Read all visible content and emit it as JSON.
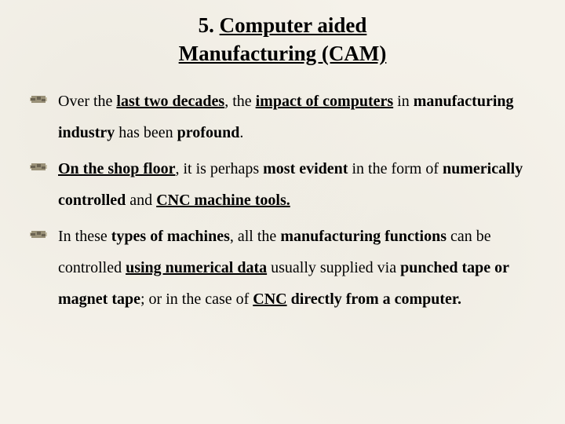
{
  "title": {
    "prefix": "5. ",
    "line1": "Computer aided",
    "line2": "Manufacturing (CAM)"
  },
  "bullets": [
    {
      "html_parts": [
        {
          "t": "Over the ",
          "b": false,
          "u": false
        },
        {
          "t": "last two decades",
          "b": true,
          "u": true
        },
        {
          "t": ", the ",
          "b": false,
          "u": false
        },
        {
          "t": "impact of computers",
          "b": true,
          "u": true
        },
        {
          "t": " in ",
          "b": false,
          "u": false
        },
        {
          "t": "manufacturing industry",
          "b": true,
          "u": false
        },
        {
          "t": " has been ",
          "b": false,
          "u": false
        },
        {
          "t": "profound",
          "b": true,
          "u": false
        },
        {
          "t": ".",
          "b": false,
          "u": false
        }
      ]
    },
    {
      "html_parts": [
        {
          "t": "On the shop floor",
          "b": true,
          "u": true
        },
        {
          "t": ", it is perhaps ",
          "b": false,
          "u": false
        },
        {
          "t": "most evident",
          "b": true,
          "u": false
        },
        {
          "t": " in the form of ",
          "b": false,
          "u": false
        },
        {
          "t": "numerically controlled",
          "b": true,
          "u": false
        },
        {
          "t": " and ",
          "b": false,
          "u": false
        },
        {
          "t": "CNC machine tools.",
          "b": true,
          "u": true
        }
      ]
    },
    {
      "html_parts": [
        {
          "t": "In these ",
          "b": false,
          "u": false
        },
        {
          "t": "types of machines",
          "b": true,
          "u": false
        },
        {
          "t": ", all the ",
          "b": false,
          "u": false
        },
        {
          "t": "manufacturing functions",
          "b": true,
          "u": false
        },
        {
          "t": " can be controlled ",
          "b": false,
          "u": false
        },
        {
          "t": "using numerical data",
          "b": true,
          "u": true
        },
        {
          "t": " usually supplied via ",
          "b": false,
          "u": false
        },
        {
          "t": "punched tape or magnet tape",
          "b": true,
          "u": false
        },
        {
          "t": "; or in the case of ",
          "b": false,
          "u": false
        },
        {
          "t": "CNC",
          "b": true,
          "u": true
        },
        {
          "t": " ",
          "b": false,
          "u": false
        },
        {
          "t": "directly from a computer.",
          "b": true,
          "u": false
        }
      ]
    }
  ],
  "style": {
    "background_color": "#f5f2ea",
    "text_color": "#000000",
    "title_fontsize": 27,
    "body_fontsize": 20,
    "bullet_icon_colors": {
      "dark": "#6b6352",
      "mid": "#9a9178",
      "light": "#c8c0a8"
    }
  }
}
